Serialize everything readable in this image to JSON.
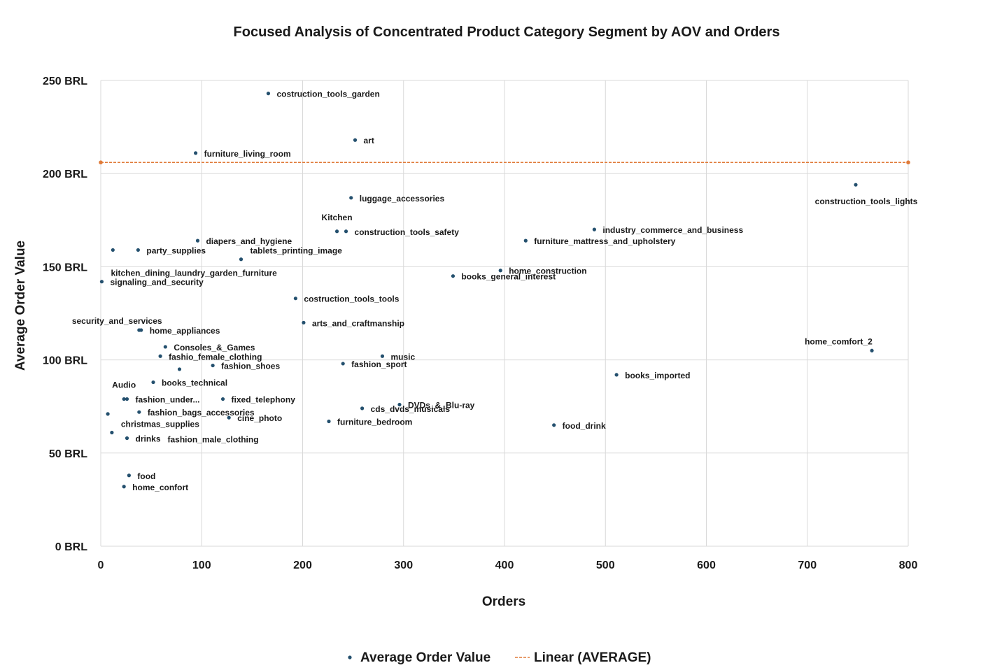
{
  "colors": {
    "points": "#24506e",
    "trend": "#e07b39",
    "grid": "#d9d9d9",
    "text": "#1a1a1a"
  },
  "chart_data": {
    "type": "scatter",
    "title": "Focused Analysis of Concentrated Product Category Segment by AOV and Orders",
    "xlabel": "Orders",
    "ylabel": "Average Order Value",
    "xlim": [
      0,
      800
    ],
    "ylim": [
      0,
      250
    ],
    "x_ticks": [
      {
        "value": 0,
        "label": "0"
      },
      {
        "value": 100,
        "label": "100"
      },
      {
        "value": 200,
        "label": "200"
      },
      {
        "value": 300,
        "label": "300"
      },
      {
        "value": 400,
        "label": "400"
      },
      {
        "value": 500,
        "label": "500"
      },
      {
        "value": 600,
        "label": "600"
      },
      {
        "value": 700,
        "label": "700"
      },
      {
        "value": 800,
        "label": "800"
      }
    ],
    "y_ticks": [
      {
        "value": 0,
        "label": "0 BRL"
      },
      {
        "value": 50,
        "label": "50 BRL"
      },
      {
        "value": 100,
        "label": "100 BRL"
      },
      {
        "value": 150,
        "label": "150 BRL"
      },
      {
        "value": 200,
        "label": "200 BRL"
      },
      {
        "value": 250,
        "label": "250 BRL"
      }
    ],
    "grid": true,
    "legend": {
      "position": "bottom",
      "entries": [
        {
          "label": "Average Order Value",
          "kind": "marker"
        },
        {
          "label": "Linear (AVERAGE)",
          "kind": "dashed-line"
        }
      ]
    },
    "average_line": {
      "name": "Linear (AVERAGE)",
      "value": 206
    },
    "series": [
      {
        "name": "Average Order Value",
        "points": [
          {
            "label": "costruction_tools_garden",
            "x": 166,
            "y": 243,
            "pos": "right"
          },
          {
            "label": "art",
            "x": 252,
            "y": 218,
            "pos": "right"
          },
          {
            "label": "furniture_living_room",
            "x": 94,
            "y": 211,
            "pos": "right"
          },
          {
            "label": "construction_tools_lights",
            "x": 748,
            "y": 194,
            "pos": "below"
          },
          {
            "label": "luggage_accessories",
            "x": 248,
            "y": 187,
            "pos": "right"
          },
          {
            "label": "Kitchen",
            "x": 234,
            "y": 169,
            "pos": "above"
          },
          {
            "label": "construction_tools_safety",
            "x": 243,
            "y": 169,
            "pos": "right"
          },
          {
            "label": "industry_commerce_and_business",
            "x": 489,
            "y": 170,
            "pos": "right"
          },
          {
            "label": "furniture_mattress_and_upholstery",
            "x": 421,
            "y": 164,
            "pos": "right"
          },
          {
            "label": "diapers_and_hygiene",
            "x": 96,
            "y": 164,
            "pos": "right"
          },
          {
            "label": "party_supplies",
            "x": 37,
            "y": 159,
            "pos": "right"
          },
          {
            "label": "",
            "x": 12,
            "y": 159,
            "pos": "none"
          },
          {
            "label": "tablets_printing_image",
            "x": 139,
            "y": 154,
            "pos": "above-right"
          },
          {
            "label": "home_construction",
            "x": 396,
            "y": 148,
            "pos": "right"
          },
          {
            "label": "books_general_interest",
            "x": 349,
            "y": 145,
            "pos": "right"
          },
          {
            "label": "kitchen_dining_laundry_garden_furniture",
            "x": 1,
            "y": 142,
            "pos": "above-right"
          },
          {
            "label": "signaling_and_security",
            "x": 1,
            "y": 142,
            "pos": "right"
          },
          {
            "label": "costruction_tools_tools",
            "x": 193,
            "y": 133,
            "pos": "right"
          },
          {
            "label": "arts_and_craftmanship",
            "x": 201,
            "y": 120,
            "pos": "right"
          },
          {
            "label": "security_and_services",
            "x": 38,
            "y": 116,
            "pos": "above-left"
          },
          {
            "label": "home_appliances",
            "x": 40,
            "y": 116,
            "pos": "right"
          },
          {
            "label": "Consoles_&_Games",
            "x": 64,
            "y": 107,
            "pos": "right"
          },
          {
            "label": "home_comfort_2",
            "x": 764,
            "y": 105,
            "pos": "above-left"
          },
          {
            "label": "fashio_female_clothing",
            "x": 59,
            "y": 102,
            "pos": "right"
          },
          {
            "label": "music",
            "x": 279,
            "y": 102,
            "pos": "right"
          },
          {
            "label": "fashion_sport",
            "x": 240,
            "y": 98,
            "pos": "right"
          },
          {
            "label": "fashion_shoes",
            "x": 111,
            "y": 97,
            "pos": "right"
          },
          {
            "label": "",
            "x": 78,
            "y": 95,
            "pos": "none"
          },
          {
            "label": "books_imported",
            "x": 511,
            "y": 92,
            "pos": "right"
          },
          {
            "label": "books_technical",
            "x": 52,
            "y": 88,
            "pos": "right"
          },
          {
            "label": "Audio",
            "x": 23,
            "y": 79,
            "pos": "above"
          },
          {
            "label": "fashion_under...",
            "x": 26,
            "y": 79,
            "pos": "right"
          },
          {
            "label": "fixed_telephony",
            "x": 121,
            "y": 79,
            "pos": "right"
          },
          {
            "label": "DVDs_&_Blu-ray",
            "x": 296,
            "y": 76,
            "pos": "right"
          },
          {
            "label": "cds_dvds_musicals",
            "x": 259,
            "y": 74,
            "pos": "right"
          },
          {
            "label": "fashion_bags_accessories",
            "x": 38,
            "y": 72,
            "pos": "right"
          },
          {
            "label": "",
            "x": 7,
            "y": 71,
            "pos": "none"
          },
          {
            "label": "cine_photo",
            "x": 127,
            "y": 69,
            "pos": "right"
          },
          {
            "label": "furniture_bedroom",
            "x": 226,
            "y": 67,
            "pos": "right"
          },
          {
            "label": "food_drink",
            "x": 449,
            "y": 65,
            "pos": "right"
          },
          {
            "label": "christmas_supplies",
            "x": 11,
            "y": 61,
            "pos": "above-right"
          },
          {
            "label": "drinks",
            "x": 26,
            "y": 58,
            "pos": "right"
          },
          {
            "label": "fashion_male_clothing",
            "x": 26,
            "y": 58,
            "pos": "far-right"
          },
          {
            "label": "food",
            "x": 28,
            "y": 38,
            "pos": "right"
          },
          {
            "label": "home_confort",
            "x": 23,
            "y": 32,
            "pos": "right"
          }
        ]
      }
    ]
  }
}
